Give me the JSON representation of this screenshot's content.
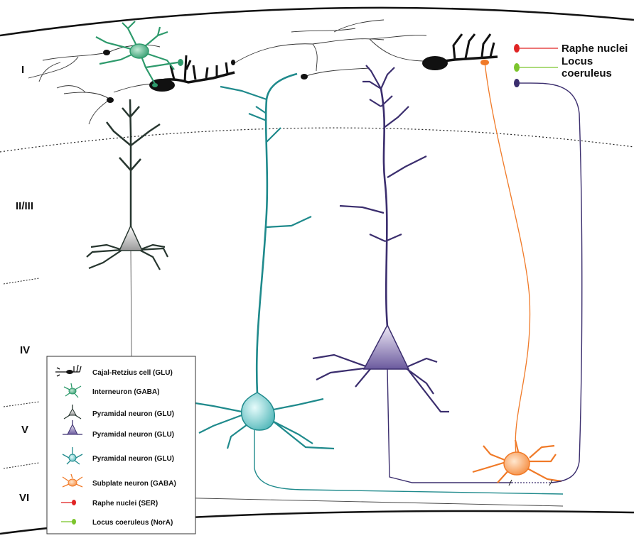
{
  "layers": [
    "I",
    "II/III",
    "IV",
    "V",
    "VI"
  ],
  "sources": {
    "raphe": "Raphe nuclei",
    "locus": [
      "Locus",
      "coeruleus"
    ]
  },
  "legend": [
    "Cajal-Retzius cell (GLU)",
    "Interneuron (GABA)",
    "Pyramidal neuron (GLU)",
    "Pyramidal neuron (GLU)",
    "Pyramidal neuron (GLU)",
    "Subplate neuron (GABA)",
    "Raphe nuclei (SER)",
    "Locus coeruleus (NorA)"
  ],
  "colors": {
    "cajal": "#111111",
    "interneuron": "#2e9a6c",
    "pyramidal_dark": "#27362f",
    "pyramidal_purple": "#3b2e6e",
    "pyramidal_teal": "#1f8a8c",
    "subplate": "#f07a28",
    "raphe": "#e02424",
    "locus": "#7cc52d"
  }
}
